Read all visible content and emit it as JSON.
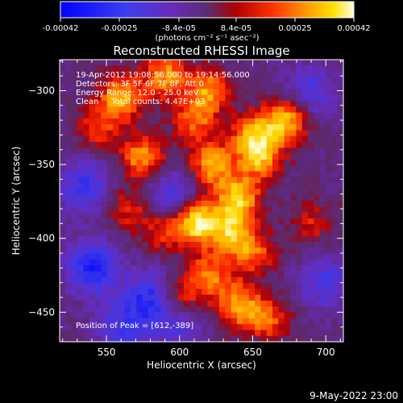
{
  "colorbar": {
    "ticks": [
      "-0.00042",
      "-0.00025",
      "-8.4e-05",
      "8.4e-05",
      "0.00025",
      "0.00042"
    ],
    "unit_label": "(photons cm⁻² s⁻¹ asec⁻²)",
    "range": [
      -0.00042,
      0.00042
    ]
  },
  "annotations": {
    "time_range": "19-Apr-2012 19:08:56.000 to 19:14:56.000",
    "detectors": "Detectors: 3F 5F 6F 7F 8F, Att 0",
    "energy_range": "Energy Range: 12.0 - 25.0 keV",
    "method_counts": "Clean     Total counts: 4.47E+03",
    "peak": "Position of Peak = [612,-389]"
  },
  "footer": {
    "timestamp": "9-May-2022 23:00"
  },
  "chart_data": {
    "type": "heatmap",
    "title": "Reconstructed RHESSI Image",
    "xlabel": "Heliocentric X (arcsec)",
    "ylabel": "Heliocentric Y (arcsec)",
    "xlim": [
      518,
      712
    ],
    "ylim": [
      -470,
      -279
    ],
    "x_ticks": [
      550,
      600,
      650,
      700
    ],
    "y_ticks": [
      -300,
      -350,
      -400,
      -450
    ],
    "colormap": [
      "#0000ff",
      "#5a2dcf",
      "#6a2b9a",
      "#5a2c70",
      "#ff0000",
      "#ff8c00",
      "#ffd400",
      "#ffffd0"
    ],
    "peak_position": [
      612,
      -389
    ],
    "sources": [
      {
        "x": 612,
        "y": -389,
        "w": 0.95
      },
      {
        "x": 640,
        "y": -372,
        "w": 0.8
      },
      {
        "x": 622,
        "y": -350,
        "w": 0.75
      },
      {
        "x": 655,
        "y": -345,
        "w": 0.7
      },
      {
        "x": 672,
        "y": -320,
        "w": 0.85
      },
      {
        "x": 650,
        "y": -330,
        "w": 0.6
      },
      {
        "x": 575,
        "y": -345,
        "w": 0.7
      },
      {
        "x": 560,
        "y": -305,
        "w": 0.75
      },
      {
        "x": 590,
        "y": -290,
        "w": 0.7
      },
      {
        "x": 620,
        "y": -300,
        "w": 0.65
      },
      {
        "x": 610,
        "y": -320,
        "w": 0.55
      },
      {
        "x": 635,
        "y": -395,
        "w": 0.7
      },
      {
        "x": 650,
        "y": -410,
        "w": 0.55
      },
      {
        "x": 620,
        "y": -425,
        "w": 0.6
      },
      {
        "x": 640,
        "y": -445,
        "w": 0.7
      },
      {
        "x": 660,
        "y": -455,
        "w": 0.55
      },
      {
        "x": 600,
        "y": -440,
        "w": 0.5
      },
      {
        "x": 565,
        "y": -380,
        "w": 0.4
      },
      {
        "x": 590,
        "y": -395,
        "w": 0.45
      },
      {
        "x": 690,
        "y": -390,
        "w": 0.35
      },
      {
        "x": 545,
        "y": -325,
        "w": 0.45
      }
    ],
    "negative_regions": [
      {
        "x": 540,
        "y": -420,
        "w": 0.9
      },
      {
        "x": 580,
        "y": -440,
        "w": 0.8
      },
      {
        "x": 535,
        "y": -365,
        "w": 0.7
      },
      {
        "x": 595,
        "y": -370,
        "w": 0.6
      },
      {
        "x": 700,
        "y": -430,
        "w": 0.6
      },
      {
        "x": 690,
        "y": -300,
        "w": 0.55
      },
      {
        "x": 560,
        "y": -460,
        "w": 0.6
      },
      {
        "x": 600,
        "y": -460,
        "w": 0.5
      }
    ]
  }
}
